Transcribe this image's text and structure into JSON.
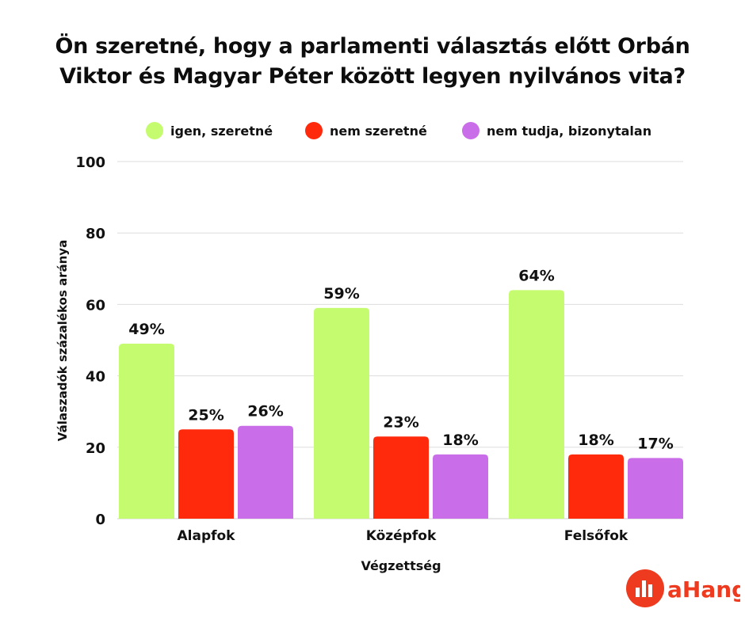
{
  "title_lines": [
    "Ön szeretné, hogy a parlamenti választás előtt Orbán",
    "Viktor és Magyar Péter között legyen nyilvános vita?"
  ],
  "brand": {
    "name": "aHang",
    "color": "#ee3a1e"
  },
  "chart_data": {
    "type": "bar",
    "title": "Ön szeretné, hogy a parlamenti választás előtt Orbán Viktor és Magyar Péter között legyen nyilvános vita?",
    "xlabel": "Végzettség",
    "ylabel": "Válaszadók százalékos aránya",
    "ylim": [
      0,
      100
    ],
    "yticks": [
      0,
      20,
      40,
      60,
      80,
      100
    ],
    "grid": true,
    "legend_position": "top",
    "categories": [
      "Alapfok",
      "Középfok",
      "Felsőfok"
    ],
    "series": [
      {
        "name": "igen, szeretné",
        "color": "#c5fb6f",
        "values": [
          49,
          59,
          64
        ],
        "labels": [
          "49%",
          "59%",
          "64%"
        ]
      },
      {
        "name": "nem szeretné",
        "color": "#ff2a0c",
        "values": [
          25,
          23,
          18
        ],
        "labels": [
          "25%",
          "23%",
          "18%"
        ]
      },
      {
        "name": "nem tudja, bizonytalan",
        "color": "#c96ee8",
        "values": [
          26,
          18,
          17
        ],
        "labels": [
          "26%",
          "18%",
          "17%"
        ]
      }
    ]
  }
}
